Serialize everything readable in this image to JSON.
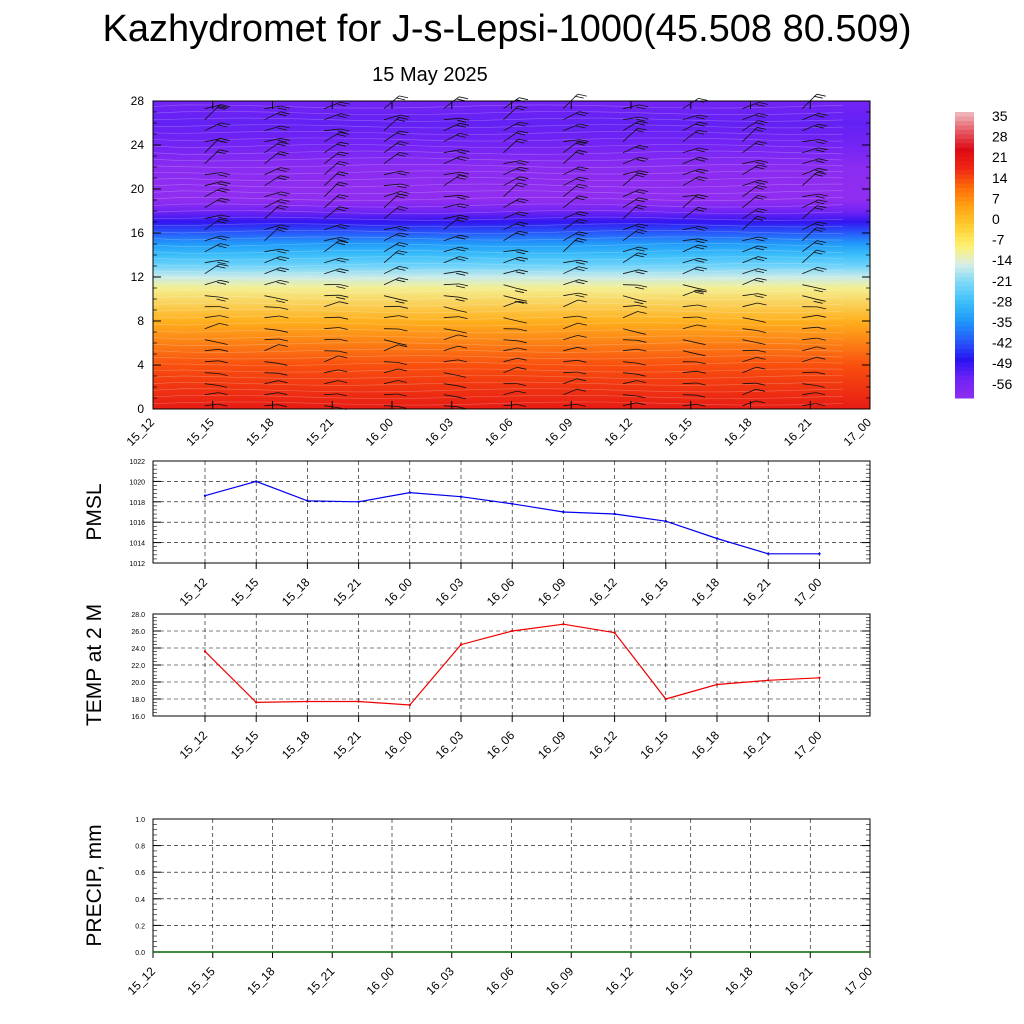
{
  "title": "Kazhydromet for J-s-Lepsi-1000(45.508 80.509)",
  "subtitle": "15 May 2025",
  "time_labels": [
    "15_12",
    "15_15",
    "15_18",
    "15_21",
    "16_00",
    "16_03",
    "16_06",
    "16_09",
    "16_12",
    "16_15",
    "16_18",
    "16_21",
    "17_00"
  ],
  "chart_data": [
    {
      "type": "heatmap",
      "ylim": [
        0,
        28
      ],
      "y_ticks": [
        "0",
        "4",
        "8",
        "12",
        "16",
        "20",
        "24",
        "28"
      ],
      "x_ticks": [
        "15_12",
        "15_15",
        "15_18",
        "15_21",
        "16_00",
        "16_03",
        "16_06",
        "16_09",
        "16_12",
        "16_15",
        "16_18",
        "16_21",
        "17_00"
      ],
      "colorbar": {
        "labels": [
          "35",
          "28",
          "21",
          "14",
          "7",
          "0",
          "-7",
          "-14",
          "-21",
          "-28",
          "-35",
          "-42",
          "-49",
          "-56"
        ],
        "range": [
          -63,
          42
        ]
      },
      "temperature_profile": {
        "levels": [
          0,
          4,
          8,
          11,
          12,
          13,
          14,
          15,
          16,
          17,
          18,
          19,
          20,
          22,
          24,
          26,
          28
        ],
        "values": [
          24,
          17,
          5,
          -9,
          -15,
          -22,
          -28,
          -34,
          -42,
          -50,
          -57,
          -63,
          -64,
          -62,
          -57,
          -55,
          -57
        ]
      },
      "wind_barbs": true
    },
    {
      "type": "line",
      "ylabel": "PMSL",
      "ylim": [
        1012,
        1022
      ],
      "y_ticks": [
        "1012",
        "1014",
        "1016",
        "1018",
        "1020",
        "1022"
      ],
      "x": [
        "15_12",
        "15_15",
        "15_18",
        "15_21",
        "16_00",
        "16_03",
        "16_06",
        "16_09",
        "16_12",
        "16_15",
        "16_18",
        "16_21",
        "17_00"
      ],
      "values": [
        1018.6,
        1020.0,
        1018.1,
        1018.0,
        1018.9,
        1018.5,
        1017.8,
        1017.0,
        1016.8,
        1016.1,
        1014.4,
        1012.9,
        1012.9
      ],
      "color": "#0000ee"
    },
    {
      "type": "line",
      "ylabel": "TEMP at 2 M",
      "ylim": [
        16,
        28
      ],
      "y_ticks": [
        "16.0",
        "18.0",
        "20.0",
        "22.0",
        "24.0",
        "26.0",
        "28.0"
      ],
      "x": [
        "15_12",
        "15_15",
        "15_18",
        "15_21",
        "16_00",
        "16_03",
        "16_06",
        "16_09",
        "16_12",
        "16_15",
        "16_18",
        "16_21",
        "17_00"
      ],
      "values": [
        23.6,
        17.6,
        17.7,
        17.7,
        17.3,
        24.4,
        26.0,
        26.8,
        25.8,
        18.0,
        19.7,
        20.2,
        20.5
      ],
      "color": "#ee0000"
    },
    {
      "type": "line",
      "ylabel": "PRECIP, mm",
      "ylim": [
        0,
        1
      ],
      "y_ticks": [
        "0.0",
        "0.2",
        "0.4",
        "0.6",
        "0.8",
        "1.0"
      ],
      "x_ticks": [
        "15_12",
        "15_15",
        "15_18",
        "15_21",
        "16_00",
        "16_03",
        "16_06",
        "16_09",
        "16_12",
        "16_15",
        "16_18",
        "16_21",
        "17_00"
      ],
      "values": [
        0,
        0,
        0,
        0,
        0,
        0,
        0,
        0,
        0,
        0,
        0,
        0,
        0
      ],
      "color": "#006400"
    }
  ]
}
